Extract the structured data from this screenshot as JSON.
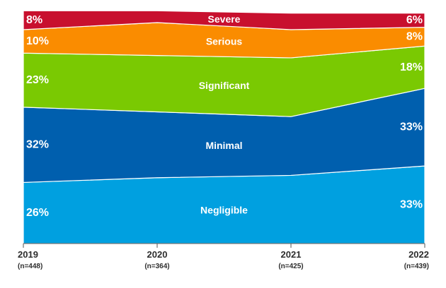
{
  "chart_data": {
    "type": "area",
    "stacked": true,
    "categories": [
      "2019",
      "2020",
      "2021",
      "2022"
    ],
    "sample_sizes": [
      "(n=448)",
      "(n=364)",
      "(n=425)",
      "(n=439)"
    ],
    "series": [
      {
        "name": "Negligible",
        "color": "#00a0e0",
        "values": [
          26,
          28,
          29,
          33
        ]
      },
      {
        "name": "Minimal",
        "color": "#005fae",
        "values": [
          32,
          28,
          25,
          33
        ]
      },
      {
        "name": "Significant",
        "color": "#7ac902",
        "values": [
          23,
          24,
          25,
          18
        ]
      },
      {
        "name": "Serious",
        "color": "#fa8c00",
        "values": [
          10,
          14,
          12,
          8
        ]
      },
      {
        "name": "Severe",
        "color": "#c8102e",
        "values": [
          8,
          5,
          7,
          6
        ]
      }
    ],
    "data_labels": {
      "left": {
        "Negligible": "26%",
        "Minimal": "32%",
        "Significant": "23%",
        "Serious": "10%",
        "Severe": "8%"
      },
      "right": {
        "Negligible": "33%",
        "Minimal": "33%",
        "Significant": "18%",
        "Serious": "8%",
        "Severe": "6%"
      }
    },
    "ylim": [
      0,
      100
    ],
    "grid": false,
    "legend": "inline",
    "title": "",
    "xlabel": "",
    "ylabel": ""
  }
}
